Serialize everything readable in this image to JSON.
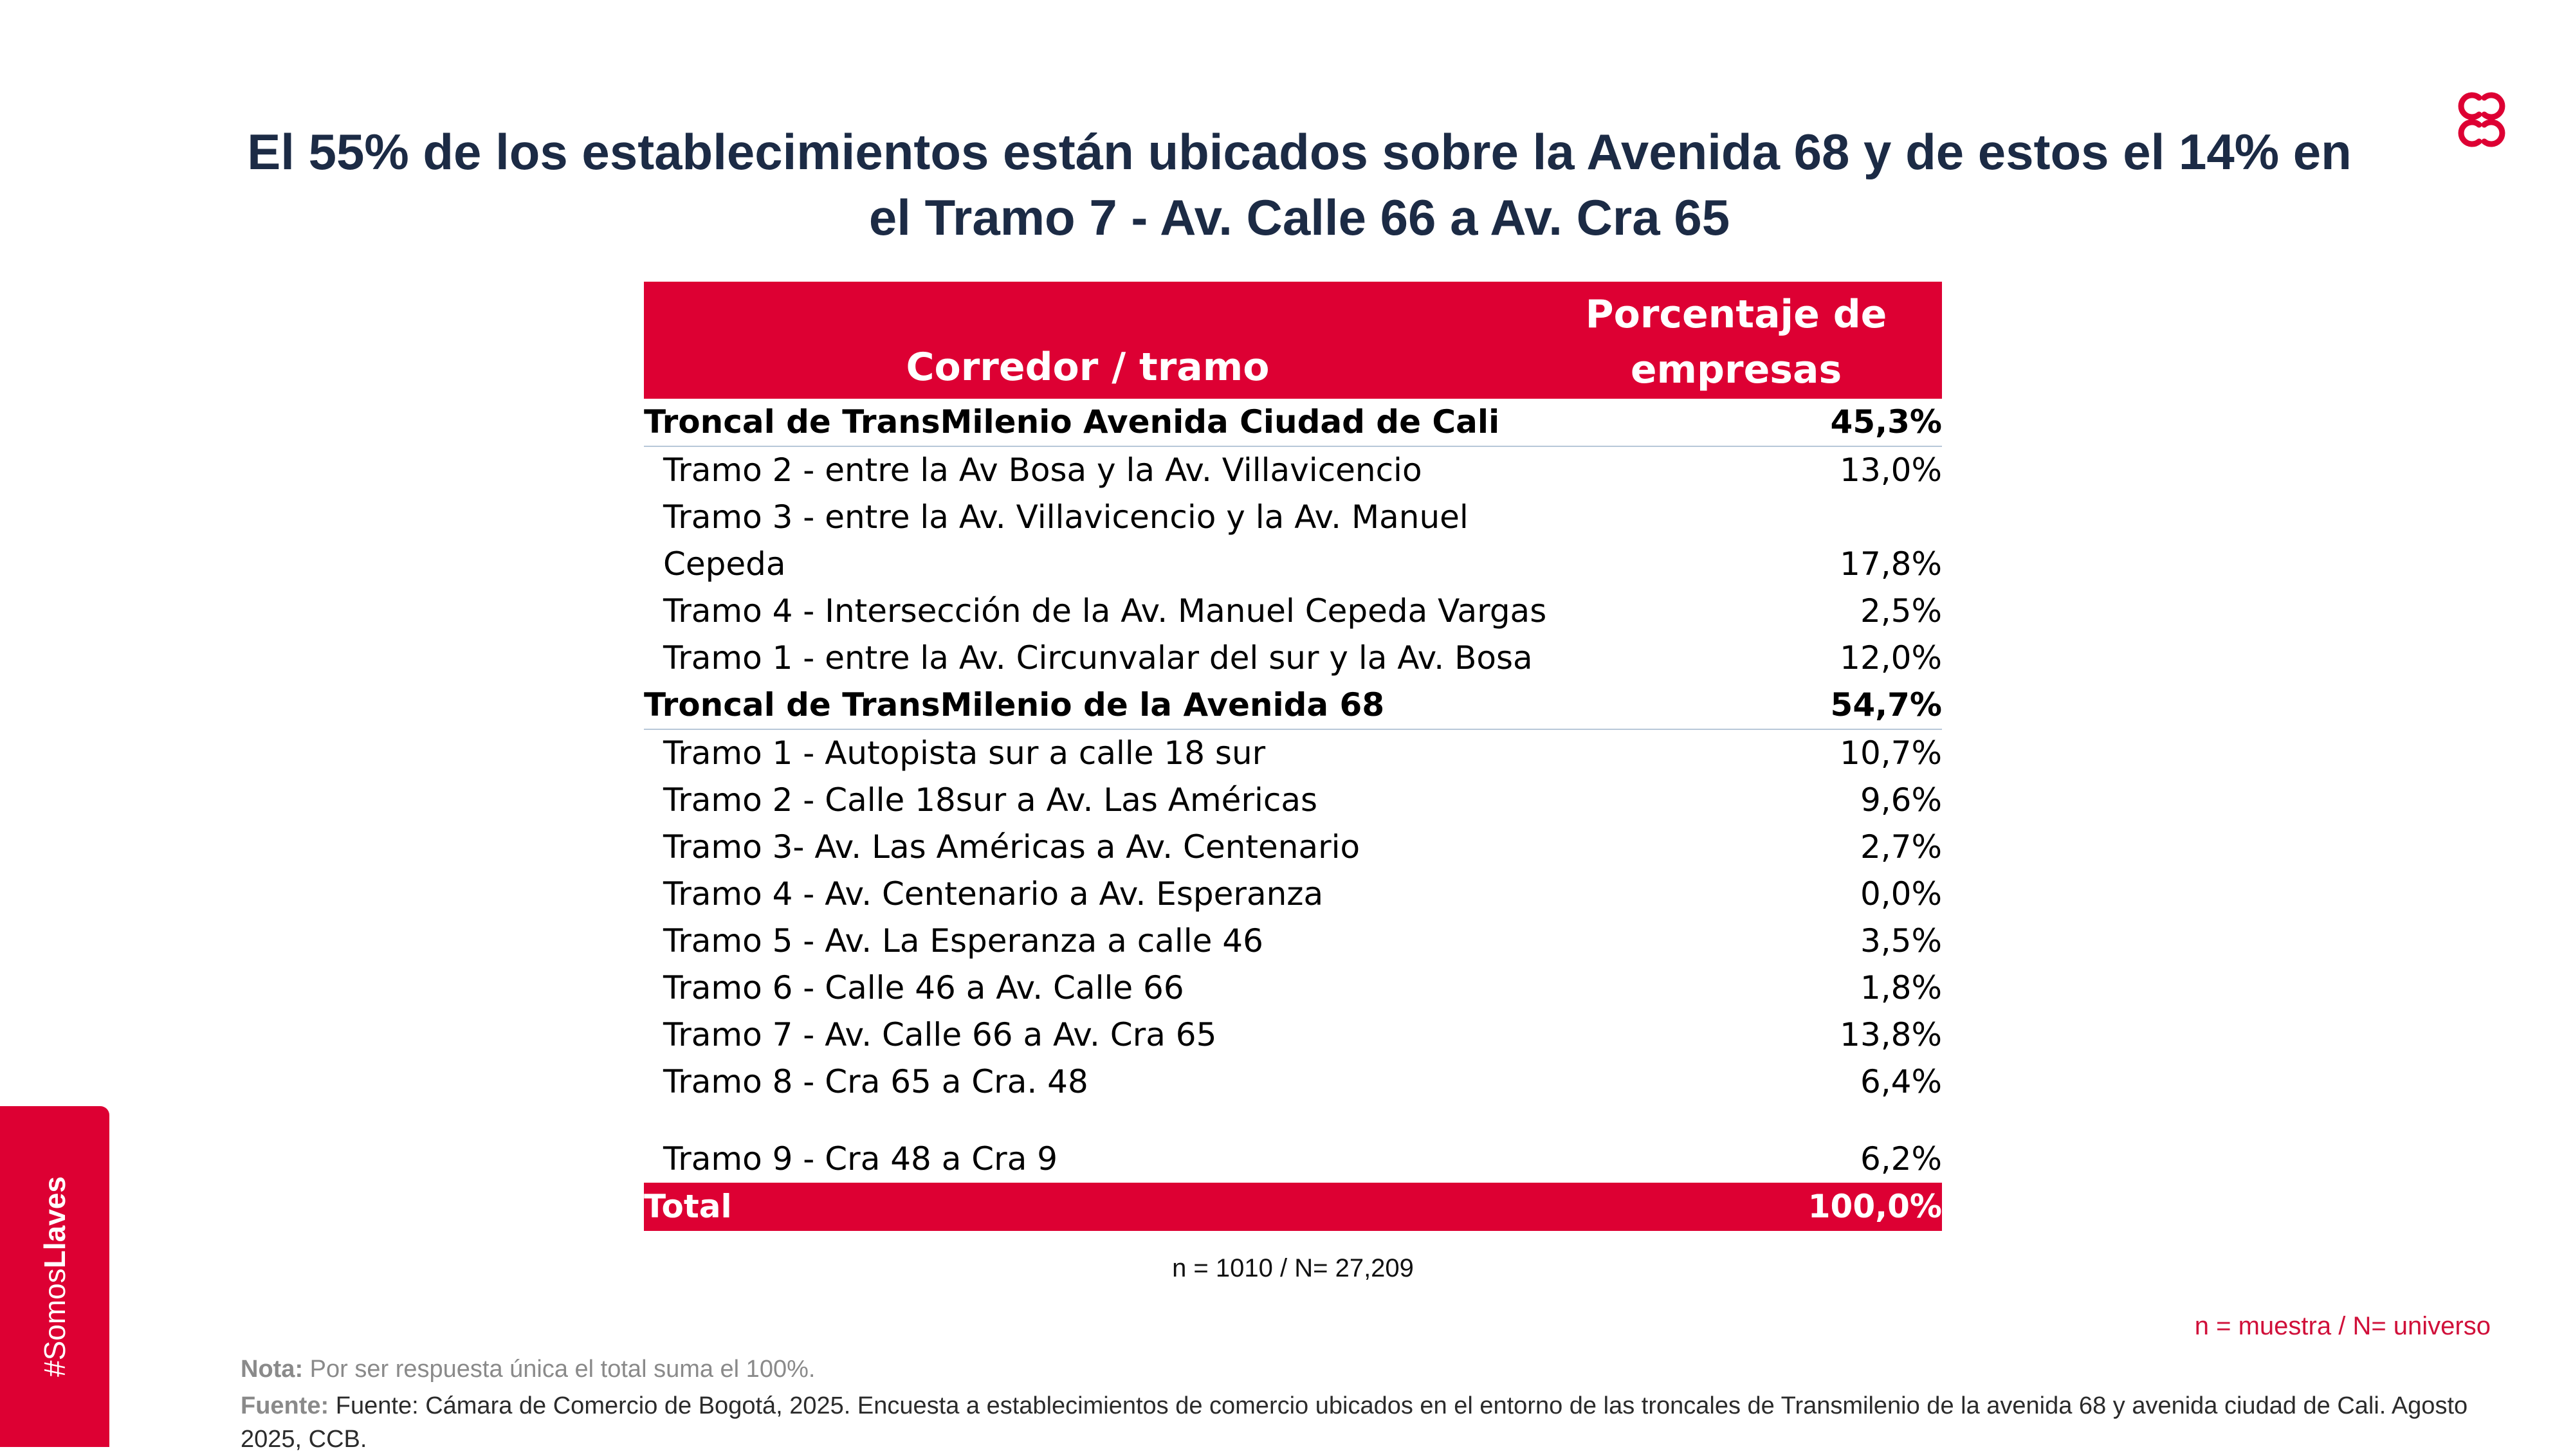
{
  "title": {
    "line1": "El 55% de los establecimientos están ubicados sobre la Avenida 68 y de estos el 14% en",
    "line2": "el Tramo 7 - Av. Calle 66 a Av. Cra 65"
  },
  "colors": {
    "brand_red": "#dd0033",
    "title_navy": "#1c2b45",
    "divider": "#b7c7d8"
  },
  "table": {
    "header": {
      "col1": "Corredor / tramo",
      "col2_line1": "Porcentaje de",
      "col2_line2": "empresas"
    },
    "group1": {
      "label": "Troncal de TransMilenio Avenida Ciudad de Cali",
      "value": "45,3%"
    },
    "group1_rows": [
      {
        "label": "Tramo  2 - entre la Av Bosa y la Av. Villavicencio",
        "value": "13,0%"
      },
      {
        "label": "Tramo  3 - entre la Av. Villavicencio y la Av. Manuel Cepeda",
        "value": "17,8%"
      },
      {
        "label": "Tramo  4 - Intersección de la Av. Manuel Cepeda Vargas",
        "value": "2,5%"
      },
      {
        "label": "Tramo 1 - entre la Av. Circunvalar del sur y la Av. Bosa",
        "value": "12,0%"
      }
    ],
    "group2": {
      "label": "Troncal de TransMilenio de la Avenida 68",
      "value": "54,7%"
    },
    "group2_rows": [
      {
        "label": "Tramo 1 - Autopista sur a calle 18 sur",
        "value": "10,7%"
      },
      {
        "label": "Tramo 2 - Calle 18sur a Av. Las Américas",
        "value": "9,6%"
      },
      {
        "label": "Tramo 3- Av. Las Américas a Av. Centenario",
        "value": "2,7%"
      },
      {
        "label": "Tramo 4 - Av. Centenario a Av. Esperanza",
        "value": "0,0%"
      },
      {
        "label": "Tramo 5 - Av.  La Esperanza a calle 46",
        "value": "3,5%"
      },
      {
        "label": "Tramo 6 - Calle 46 a Av. Calle 66",
        "value": "1,8%"
      },
      {
        "label": "Tramo 7 - Av. Calle 66 a Av. Cra 65",
        "value": "13,8%"
      },
      {
        "label": "Tramo 8 - Cra 65 a Cra. 48",
        "value": "6,4%"
      },
      {
        "label": "Tramo 9 - Cra 48 a Cra 9",
        "value": "6,2%"
      }
    ],
    "total": {
      "label": "Total",
      "value": "100,0%"
    }
  },
  "sample_note": "n = 1010 / N= 27,209",
  "legend": "n = muestra / N= universo",
  "nota": {
    "label": "Nota:",
    "text": "Por ser respuesta única el total suma el 100%."
  },
  "fuente": {
    "label": "Fuente:",
    "text": "Fuente:  Cámara de Comercio de Bogotá, 2025. Encuesta a establecimientos de comercio ubicados en el entorno de las troncales de Transmilenio de la avenida 68 y avenida ciudad de Cali. Agosto 2025, CCB."
  },
  "sidetab": {
    "prefix": "#Somos",
    "bold": "Llaves"
  }
}
